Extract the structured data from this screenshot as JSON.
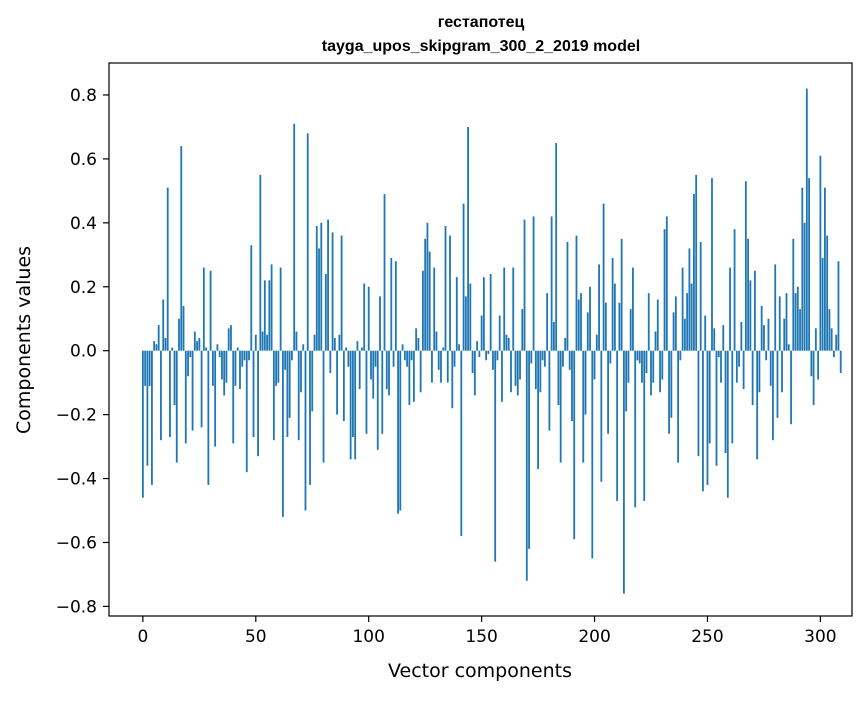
{
  "chart_data": {
    "type": "bar",
    "title": "гестапотец",
    "subtitle": "tayga_upos_skipgram_300_2_2019 model",
    "xlabel": "Vector components",
    "ylabel": "Components values",
    "xlim": [
      -15,
      314
    ],
    "ylim": [
      -0.83,
      0.9
    ],
    "xticks": [
      0,
      50,
      100,
      150,
      200,
      250,
      300
    ],
    "xtick_labels": [
      "0",
      "50",
      "100",
      "150",
      "200",
      "250",
      "300"
    ],
    "yticks": [
      -0.8,
      -0.6,
      -0.4,
      -0.2,
      0.0,
      0.2,
      0.4,
      0.6,
      0.8
    ],
    "ytick_labels": [
      "−0.8",
      "−0.6",
      "−0.4",
      "−0.2",
      "0.0",
      "0.2",
      "0.4",
      "0.6",
      "0.8"
    ],
    "grid": false,
    "bar_color": "#1f77b4",
    "values": [
      -0.46,
      -0.11,
      -0.36,
      -0.11,
      -0.42,
      0.03,
      0.02,
      0.08,
      -0.28,
      0.16,
      0.04,
      0.51,
      -0.27,
      0.01,
      -0.17,
      -0.35,
      0.1,
      0.64,
      0.14,
      -0.29,
      -0.08,
      -0.02,
      -0.25,
      0.06,
      0.03,
      0.04,
      -0.24,
      0.26,
      0.01,
      -0.42,
      0.25,
      -0.11,
      -0.3,
      0.02,
      -0.02,
      -0.09,
      -0.14,
      -0.1,
      0.07,
      0.08,
      -0.29,
      -0.11,
      0.01,
      -0.12,
      -0.05,
      -0.03,
      -0.38,
      -0.03,
      0.33,
      -0.27,
      0.05,
      -0.33,
      0.55,
      0.06,
      0.22,
      0.05,
      0.22,
      0.27,
      -0.28,
      -0.11,
      -0.1,
      0.26,
      -0.52,
      -0.06,
      -0.27,
      -0.21,
      -0.03,
      0.71,
      0.06,
      -0.28,
      -0.13,
      0.02,
      -0.5,
      0.68,
      -0.42,
      -0.19,
      0.05,
      0.39,
      0.32,
      0.4,
      -0.35,
      0.24,
      0.41,
      -0.07,
      0.37,
      0.04,
      -0.2,
      0.05,
      0.36,
      -0.22,
      0.01,
      -0.05,
      -0.34,
      -0.27,
      -0.34,
      0.03,
      -0.12,
      0.01,
      0.21,
      -0.26,
      0.2,
      -0.09,
      -0.15,
      -0.05,
      -0.31,
      0.17,
      -0.26,
      0.49,
      -0.12,
      -0.14,
      0.29,
      -0.05,
      0.28,
      -0.51,
      -0.5,
      0.02,
      -0.03,
      -0.05,
      -0.17,
      -0.03,
      -0.16,
      0.07,
      0.04,
      -0.13,
      0.25,
      0.35,
      0.4,
      0.31,
      -0.1,
      0.26,
      0.06,
      -0.06,
      -0.1,
      0.01,
      0.39,
      -0.1,
      0.36,
      -0.18,
      -0.05,
      0.23,
      0.02,
      -0.58,
      0.46,
      0.17,
      0.7,
      0.21,
      -0.07,
      -0.14,
      0.03,
      -0.02,
      0.11,
      0.23,
      -0.03,
      -0.01,
      0.24,
      -0.06,
      -0.66,
      -0.03,
      0.11,
      -0.16,
      0.26,
      0.05,
      0.04,
      -0.13,
      0.26,
      -0.11,
      -0.14,
      -0.09,
      0.13,
      0.41,
      -0.72,
      -0.62,
      -0.04,
      0.42,
      -0.12,
      -0.37,
      -0.13,
      -0.03,
      -0.05,
      0.18,
      -0.25,
      0.42,
      0.09,
      0.65,
      -0.17,
      -0.35,
      -0.05,
      0.04,
      0.34,
      -0.06,
      -0.22,
      -0.59,
      0.36,
      0.16,
      0.18,
      -0.35,
      -0.2,
      0.12,
      0.2,
      -0.65,
      -0.09,
      0.05,
      0.27,
      -0.41,
      0.46,
      0.15,
      -0.26,
      -0.04,
      0.29,
      0.21,
      -0.47,
      0.15,
      0.35,
      -0.76,
      -0.19,
      -0.1,
      0.13,
      0.26,
      -0.49,
      -0.03,
      -0.04,
      -0.1,
      -0.47,
      -0.07,
      0.18,
      -0.14,
      -0.1,
      0.06,
      0.16,
      -0.13,
      -0.09,
      0.38,
      0.42,
      -0.26,
      -0.21,
      0.12,
      0.17,
      -0.35,
      -0.03,
      0.26,
      0.1,
      0.18,
      0.32,
      0.21,
      0.49,
      0.55,
      -0.33,
      0.34,
      -0.44,
      0.11,
      -0.42,
      -0.29,
      0.54,
      0.07,
      -0.36,
      -0.02,
      -0.1,
      0.08,
      -0.32,
      -0.46,
      0.26,
      -0.29,
      0.38,
      -0.1,
      -0.05,
      0.09,
      -0.12,
      0.53,
      0.35,
      0.22,
      -0.17,
      0.25,
      -0.34,
      -0.13,
      0.14,
      0.08,
      -0.03,
      0.1,
      -0.11,
      -0.28,
      0.27,
      -0.21,
      0.17,
      -0.13,
      0.1,
      0.18,
      0.02,
      -0.23,
      0.35,
      0.18,
      0.2,
      0.13,
      0.51,
      0.4,
      0.82,
      0.54,
      -0.08,
      -0.17,
      0.07,
      -0.09,
      0.61,
      0.29,
      0.51,
      0.36,
      0.13,
      0.07,
      -0.02,
      0.05,
      0.28,
      -0.07
    ]
  }
}
